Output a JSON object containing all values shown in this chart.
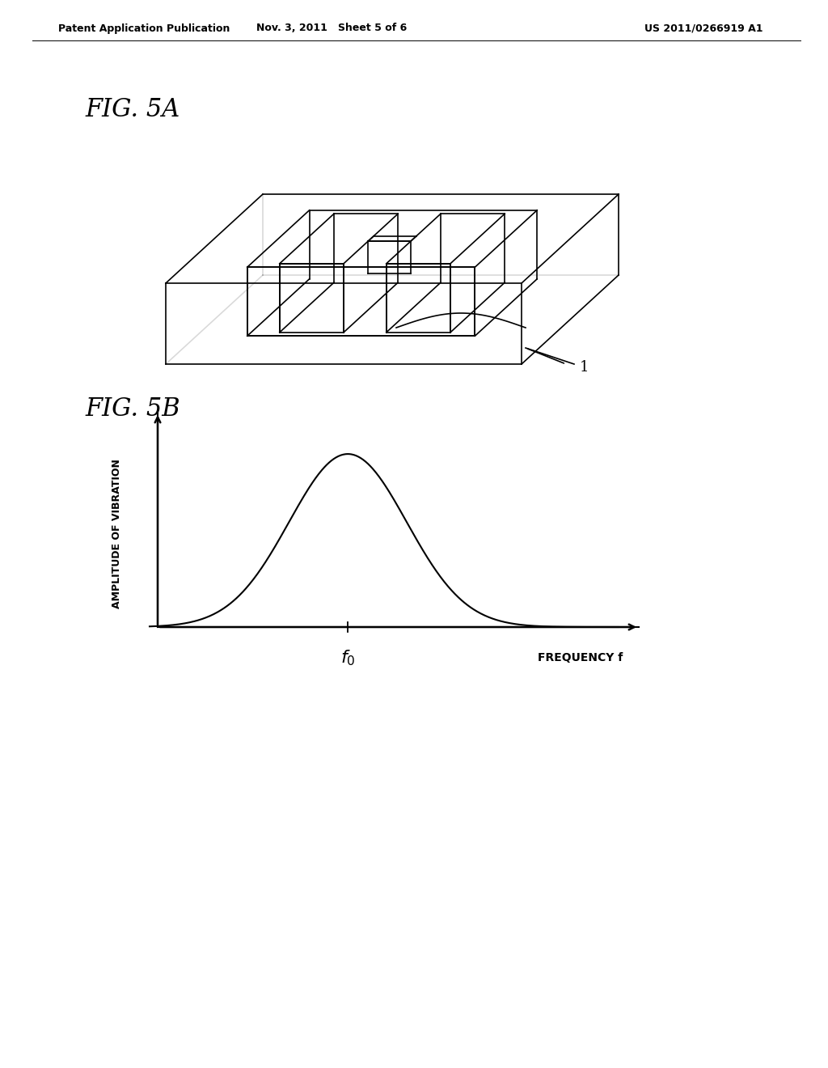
{
  "bg_color": "#ffffff",
  "header_left": "Patent Application Publication",
  "header_mid": "Nov. 3, 2011   Sheet 5 of 6",
  "header_right": "US 2011/0266919 A1",
  "fig5a_label": "FIG. 5A",
  "fig5b_label": "FIG. 5B",
  "label_1": "1",
  "ylabel": "AMPLITUDE OF VIBRATION",
  "xlabel": "FREQUENCY f",
  "line_color": "#000000",
  "header_fontsize": 9,
  "fig_label_fontsize": 20
}
